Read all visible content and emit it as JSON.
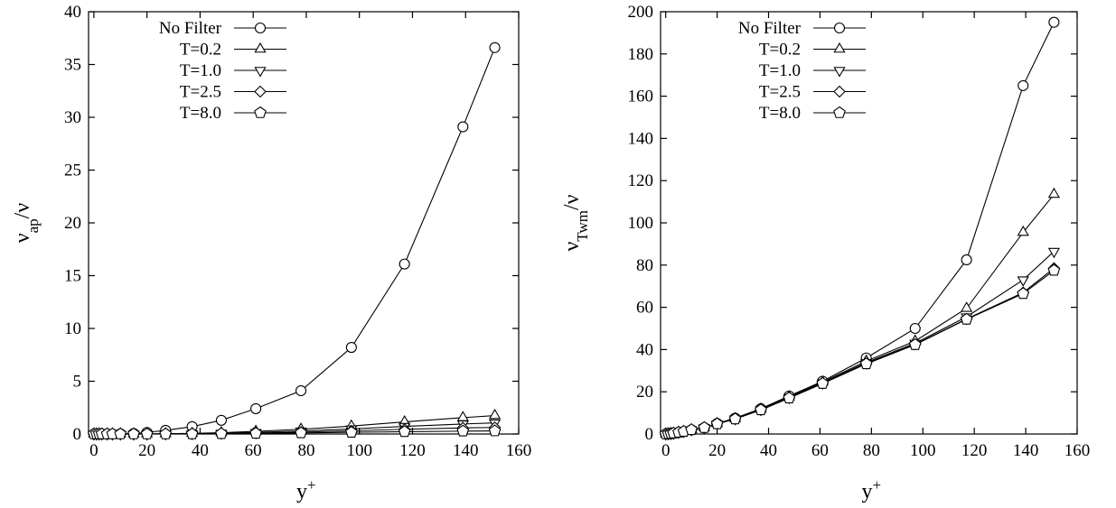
{
  "chart_data": [
    {
      "type": "line",
      "xlabel": "y",
      "xlabel_sup": "+",
      "ylabel": "ν",
      "ylabel_sub": "ap",
      "ylabel_tail": "/ν",
      "xlim": [
        -2,
        160
      ],
      "ylim": [
        0,
        40
      ],
      "xticks": [
        0,
        20,
        40,
        60,
        80,
        100,
        120,
        140,
        160
      ],
      "yticks": [
        0,
        5,
        10,
        15,
        20,
        25,
        30,
        35,
        40
      ],
      "legend": "top-left",
      "series": [
        {
          "name": "No Filter",
          "marker": "circle",
          "x": [
            0,
            1,
            2,
            3,
            5,
            7,
            10,
            15,
            20,
            27,
            37,
            48,
            61,
            78,
            97,
            117,
            139,
            151
          ],
          "y": [
            0,
            0,
            0,
            0,
            0,
            0,
            0.02,
            0.05,
            0.15,
            0.35,
            0.7,
            1.3,
            2.4,
            4.1,
            8.2,
            16.1,
            29.1,
            36.6
          ]
        },
        {
          "name": "T=0.2",
          "marker": "triangle-up",
          "x": [
            0,
            1,
            2,
            3,
            5,
            7,
            10,
            15,
            20,
            27,
            37,
            48,
            61,
            78,
            97,
            117,
            139,
            151
          ],
          "y": [
            0,
            0,
            0,
            0,
            0,
            0,
            0,
            0,
            0.01,
            0.03,
            0.06,
            0.12,
            0.25,
            0.45,
            0.75,
            1.15,
            1.55,
            1.75
          ]
        },
        {
          "name": "T=1.0",
          "marker": "triangle-down",
          "x": [
            0,
            1,
            2,
            3,
            5,
            7,
            10,
            15,
            20,
            27,
            37,
            48,
            61,
            78,
            97,
            117,
            139,
            151
          ],
          "y": [
            0,
            0,
            0,
            0,
            0,
            0,
            0,
            0,
            0,
            0.02,
            0.04,
            0.08,
            0.15,
            0.28,
            0.48,
            0.72,
            0.95,
            1.05
          ]
        },
        {
          "name": "T=2.5",
          "marker": "diamond",
          "x": [
            0,
            1,
            2,
            3,
            5,
            7,
            10,
            15,
            20,
            27,
            37,
            48,
            61,
            78,
            97,
            117,
            139,
            151
          ],
          "y": [
            0,
            0,
            0,
            0,
            0,
            0,
            0,
            0,
            0,
            0.01,
            0.02,
            0.05,
            0.09,
            0.17,
            0.3,
            0.45,
            0.58,
            0.62
          ]
        },
        {
          "name": "T=8.0",
          "marker": "pentagon",
          "x": [
            0,
            1,
            2,
            3,
            5,
            7,
            10,
            15,
            20,
            27,
            37,
            48,
            61,
            78,
            97,
            117,
            139,
            151
          ],
          "y": [
            0,
            0,
            0,
            0,
            0,
            0,
            0,
            0,
            0,
            0,
            0.01,
            0.03,
            0.06,
            0.1,
            0.16,
            0.22,
            0.27,
            0.29
          ]
        }
      ]
    },
    {
      "type": "line",
      "xlabel": "y",
      "xlabel_sup": "+",
      "ylabel": "ν",
      "ylabel_sub": "Twm",
      "ylabel_tail": "/ν",
      "xlim": [
        -2,
        160
      ],
      "ylim": [
        0,
        200
      ],
      "xticks": [
        0,
        20,
        40,
        60,
        80,
        100,
        120,
        140,
        160
      ],
      "yticks": [
        0,
        20,
        40,
        60,
        80,
        100,
        120,
        140,
        160,
        180,
        200
      ],
      "legend": "top-left",
      "series": [
        {
          "name": "No Filter",
          "marker": "circle",
          "x": [
            0,
            1,
            2,
            3,
            5,
            7,
            10,
            15,
            20,
            27,
            37,
            48,
            61,
            78,
            97,
            117,
            139,
            151
          ],
          "y": [
            0,
            0.1,
            0.2,
            0.4,
            0.8,
            1.2,
            2,
            3,
            5,
            7.5,
            12,
            18,
            25,
            36,
            50,
            82.5,
            165,
            195
          ]
        },
        {
          "name": "T=0.2",
          "marker": "triangle-up",
          "x": [
            0,
            1,
            2,
            3,
            5,
            7,
            10,
            15,
            20,
            27,
            37,
            48,
            61,
            78,
            97,
            117,
            139,
            151
          ],
          "y": [
            0,
            0.1,
            0.2,
            0.4,
            0.8,
            1.2,
            2,
            3,
            4.9,
            7.3,
            11.8,
            17.6,
            24.6,
            34.5,
            44,
            59.5,
            95.5,
            113.5
          ]
        },
        {
          "name": "T=1.0",
          "marker": "triangle-down",
          "x": [
            0,
            1,
            2,
            3,
            5,
            7,
            10,
            15,
            20,
            27,
            37,
            48,
            61,
            78,
            97,
            117,
            139,
            151
          ],
          "y": [
            0,
            0.1,
            0.2,
            0.4,
            0.8,
            1.2,
            2,
            3,
            4.8,
            7.2,
            11.6,
            17.3,
            24.2,
            33.8,
            43,
            55.5,
            73,
            86.5
          ]
        },
        {
          "name": "T=2.5",
          "marker": "diamond",
          "x": [
            0,
            1,
            2,
            3,
            5,
            7,
            10,
            15,
            20,
            27,
            37,
            48,
            61,
            78,
            97,
            117,
            139,
            151
          ],
          "y": [
            0,
            0.1,
            0.2,
            0.4,
            0.8,
            1.2,
            2,
            3,
            4.8,
            7.1,
            11.5,
            17.1,
            24,
            33.4,
            42.5,
            54.5,
            67,
            78.5
          ]
        },
        {
          "name": "T=8.0",
          "marker": "pentagon",
          "x": [
            0,
            1,
            2,
            3,
            5,
            7,
            10,
            15,
            20,
            27,
            37,
            48,
            61,
            78,
            97,
            117,
            139,
            151
          ],
          "y": [
            0,
            0.1,
            0.2,
            0.4,
            0.8,
            1.2,
            2,
            3,
            4.8,
            7.1,
            11.4,
            17,
            23.9,
            33.2,
            42.3,
            54.3,
            66.5,
            77.5
          ]
        }
      ]
    }
  ]
}
